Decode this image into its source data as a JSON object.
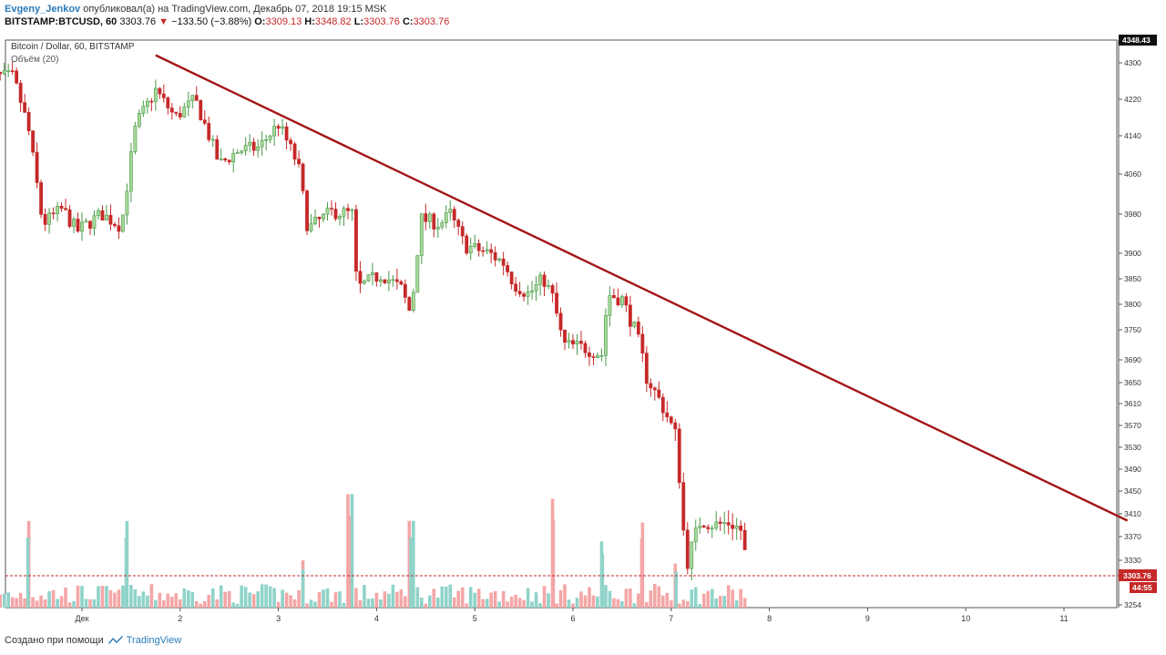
{
  "header": {
    "author": "Evgeny_Jenkov",
    "published": "опубликовал(а) на TradingView.com, Декабрь 07, 2018 19:15 MSK",
    "symbol": "BITSTAMP:BTCUSD, 60",
    "last": "3303.76",
    "change": "−133.50 (−3.88%)",
    "o_label": "O:",
    "o": "3309.13",
    "h_label": "H:",
    "h": "3348.82",
    "l_label": "L:",
    "l": "3303.76",
    "c_label": "C:",
    "c": "3303.76"
  },
  "footer": {
    "created": "Создано при помощи",
    "brand": "TradingView"
  },
  "colors": {
    "up": "#4a9a4a",
    "down": "#c62828",
    "vol_up": "#8fd3c9",
    "vol_down": "#f4a6a6",
    "trend": "#a31515",
    "price_tag": "#c62828"
  },
  "chart_data": {
    "type": "candlestick",
    "title": "Bitcoin / Dollar, 60, BITSTAMP",
    "volume_label": "Объём (20)",
    "y_ticks": [
      4300,
      4220,
      4140,
      4060,
      3980,
      3900,
      3850,
      3800,
      3750,
      3690,
      3650,
      3610,
      3570,
      3530,
      3490,
      3450,
      3410,
      3370,
      3330,
      3254
    ],
    "y_top_label": "4348.43",
    "price_label": "3303.76",
    "timer_label": "44:55",
    "x_ticks": [
      "Дек",
      "2",
      "3",
      "4",
      "5",
      "6",
      "7",
      "8",
      "9",
      "10",
      "11"
    ],
    "x_tick_day": [
      1,
      2,
      3,
      4,
      5,
      6,
      7,
      8,
      9,
      10,
      11
    ],
    "x_range_day": [
      0.25,
      11.6
    ],
    "current_price": 3303.76,
    "trendline": {
      "start": [
        1.75,
        4315
      ],
      "end": [
        11.6,
        3398
      ]
    },
    "price_path": [
      [
        0.3,
        4270
      ],
      [
        0.45,
        4160
      ],
      [
        0.6,
        3960
      ],
      [
        0.8,
        3990
      ],
      [
        0.95,
        3945
      ],
      [
        1.2,
        3980
      ],
      [
        1.4,
        3955
      ],
      [
        1.55,
        4165
      ],
      [
        1.75,
        4240
      ],
      [
        1.95,
        4180
      ],
      [
        2.15,
        4220
      ],
      [
        2.4,
        4080
      ],
      [
        2.6,
        4110
      ],
      [
        2.8,
        4115
      ],
      [
        3.0,
        4165
      ],
      [
        3.2,
        4080
      ],
      [
        3.3,
        3950
      ],
      [
        3.55,
        3985
      ],
      [
        3.75,
        3980
      ],
      [
        3.8,
        3830
      ],
      [
        4.05,
        3860
      ],
      [
        4.25,
        3830
      ],
      [
        4.35,
        3780
      ],
      [
        4.45,
        3970
      ],
      [
        4.65,
        3960
      ],
      [
        4.75,
        3980
      ],
      [
        4.9,
        3915
      ],
      [
        5.15,
        3900
      ],
      [
        5.3,
        3880
      ],
      [
        5.4,
        3840
      ],
      [
        5.55,
        3820
      ],
      [
        5.7,
        3850
      ],
      [
        5.8,
        3810
      ],
      [
        5.9,
        3720
      ],
      [
        6.1,
        3715
      ],
      [
        6.3,
        3700
      ],
      [
        6.35,
        3820
      ],
      [
        6.5,
        3810
      ],
      [
        6.65,
        3740
      ],
      [
        6.75,
        3660
      ],
      [
        6.9,
        3610
      ],
      [
        7.05,
        3550
      ],
      [
        7.1,
        3440
      ],
      [
        7.15,
        3320
      ],
      [
        7.3,
        3400
      ],
      [
        7.45,
        3390
      ],
      [
        7.6,
        3395
      ],
      [
        7.72,
        3380
      ],
      [
        7.78,
        3303.76
      ]
    ],
    "volume_spikes": [
      [
        0.45,
        0.55
      ],
      [
        1.45,
        0.55
      ],
      [
        3.25,
        0.3
      ],
      [
        3.72,
        0.72
      ],
      [
        4.35,
        0.55
      ],
      [
        5.8,
        0.69
      ],
      [
        6.3,
        0.42
      ],
      [
        6.7,
        0.54
      ],
      [
        7.05,
        0.28
      ]
    ]
  }
}
